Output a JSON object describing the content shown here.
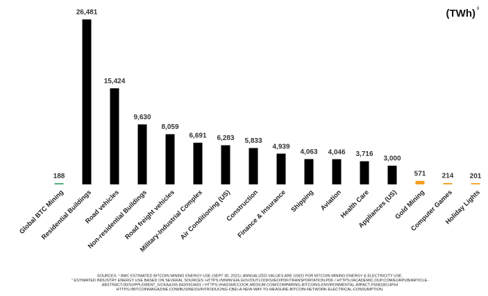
{
  "chart_data": {
    "type": "bar",
    "unit": "(TWh)",
    "unit_note": "ii",
    "categories": [
      "Global BTC Mining",
      "Residential Buildings",
      "Road vehicles",
      "Non-residential Buildings",
      "Road freight vehicles",
      "Military-Industrial Complex",
      "Air Conditioning (US)",
      "Construction",
      "Finance & Insurance",
      "Shipping",
      "Aviation",
      "Health Care",
      "Appliances (US)",
      "Gold Mining",
      "Computer Games",
      "Holiday Lights"
    ],
    "values": [
      188,
      26481,
      15424,
      9630,
      8059,
      6691,
      6283,
      5833,
      4939,
      4063,
      4046,
      3716,
      3000,
      571,
      214,
      201
    ],
    "value_labels": [
      "188",
      "26,481",
      "15,424",
      "9,630",
      "8,059",
      "6,691",
      "6,283",
      "5,833",
      "4,939",
      "4,063",
      "4,046",
      "3,716",
      "3,000",
      "571",
      "214",
      "201"
    ],
    "colors": [
      "#2e9e5e",
      "#000000",
      "#000000",
      "#000000",
      "#000000",
      "#000000",
      "#000000",
      "#000000",
      "#000000",
      "#000000",
      "#000000",
      "#000000",
      "#000000",
      "#f0a020",
      "#f0a020",
      "#f0a020"
    ],
    "notes": [
      "SOURCES: ¹ BMC ESTIMATED BITCOIN MINING ENERGY USE (SEPT 30, 2021); ANNUALIZED VALUES ARE USED FOR BITCOIN MINING ENERGY & ELECTRICITY USE.",
      "ⁱⁱ ESTIMATED INDUSTRY ENERGY USE BASED ON SEVERAL SOURCES: HTTPS://WWW.EIA.GOV/OUTLOOKS/IEO/PDF/TRANSPORTATION.PDF / HTTPS://ACADEMIC.OUP.COM/EURPUB/ARTICLE-",
      "ABSTRACT/30/SUPPLEMENT_5/CKAA165.843/5914601 / HTTPS://HASSMCCOOK.MEDIUM.COM/COMPARING-BITCOINS-ENVIRONMENTAL-IMPACT-F56B18014F64",
      "HTTPS://BITCOINMAGAZINE.COM/BUSINESS/INTRODUCING-CBEI-A-NEW-WAY-TO-MEASURE-BITCOIN-NETWORK-ELECTRICAL-CONSUMPTION."
    ]
  }
}
